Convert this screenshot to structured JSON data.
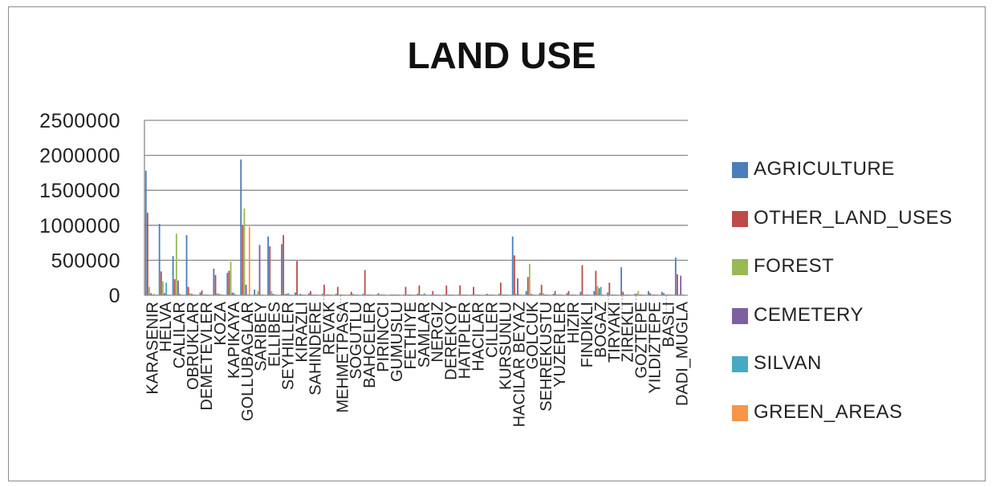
{
  "chart_data": {
    "type": "bar",
    "title": "LAND USE",
    "xlabel": "",
    "ylabel": "",
    "ylim": [
      0,
      2500000
    ],
    "yticks": [
      "2500000",
      "2000000",
      "1500000",
      "1000000",
      "500000",
      "0"
    ],
    "grid": true,
    "legend_position": "right",
    "categories": [
      "KARASENIR",
      "HELVA",
      "CALILAR",
      "OBRUKLAR",
      "DEMETEVLER",
      "KOZA",
      "KAPIKAYA",
      "GOLLUBAGLAR",
      "SARIBEY",
      "ELLIBES",
      "SEYHILLER",
      "KIRAZLI",
      "SAHINDERE",
      "REVAK",
      "MEHMETPASA",
      "SOGUTLU",
      "BAHCELER",
      "PIRINCCI",
      "GUMUSLU",
      "FETHIYE",
      "SAMLAR",
      "NERGIZ",
      "DEREKOY",
      "HATIPLER",
      "HACILAR",
      "CILLER",
      "KURSUNLU",
      "HACILAR BEYAZ",
      "GOLCUK",
      "SEHREKUSTU",
      "YUZERLER",
      "HIZIR",
      "FINDIKLI",
      "BOGAZ",
      "TIRYAKI",
      "ZIREKLI",
      "GOZTEPE",
      "YILDIZTEPE",
      "BASLI",
      "DADI_MUGLA"
    ],
    "category_labels": [
      "KARASENIR",
      "HELVA",
      "CALILAR",
      "OBRUKLAR",
      "DEMETEVLER",
      "KOZA",
      "KAPIKAYA",
      "GOLLUBAGLAR",
      "SARIBEY",
      "ELLIBES",
      "SEYHILLER",
      "KIRAZLI",
      "SAHINDERE",
      "REVAK",
      "MEHMETPASA",
      "SOGUTLU",
      "BAHCELER",
      "PIRINCCI",
      "GUMUSLU",
      "FETHIYE",
      "SAMLAR",
      "NERGIZ",
      "DEREKOY",
      "HATIPLER",
      "HACILAR",
      "CILLER",
      "KURSUNLU",
      "HACILAR BEYAZ",
      "GOLCUK",
      "SEHREKUSTU",
      "YUZERLER",
      "HIZIR",
      "FINDIKLI",
      "BOGAZ",
      "TIRYAKI",
      "ZIREKLI",
      "GOZTEPE",
      "YILDIZTEPE",
      "BASLI",
      "DADI_MUGLA"
    ],
    "series": [
      {
        "name": "AGRICULTURE",
        "color": "#4a7ebb",
        "values": [
          1780000,
          1020000,
          560000,
          860000,
          40000,
          380000,
          320000,
          1940000,
          80000,
          840000,
          730000,
          40000,
          30000,
          20000,
          20000,
          10000,
          20000,
          10000,
          10000,
          10000,
          20000,
          10000,
          10000,
          10000,
          10000,
          10000,
          20000,
          840000,
          60000,
          30000,
          20000,
          30000,
          50000,
          60000,
          40000,
          400000,
          20000,
          60000,
          50000,
          540000
        ]
      },
      {
        "name": "OTHER_LAND_USES",
        "color": "#be4b48",
        "values": [
          1180000,
          340000,
          230000,
          120000,
          70000,
          290000,
          350000,
          1000000,
          10000,
          700000,
          860000,
          490000,
          60000,
          150000,
          120000,
          50000,
          360000,
          30000,
          10000,
          120000,
          140000,
          60000,
          140000,
          140000,
          120000,
          20000,
          180000,
          570000,
          260000,
          150000,
          60000,
          60000,
          430000,
          350000,
          180000,
          50000,
          20000,
          30000,
          30000,
          300000
        ]
      },
      {
        "name": "FOREST",
        "color": "#98b954",
        "values": [
          120000,
          200000,
          880000,
          30000,
          10000,
          30000,
          480000,
          1240000,
          60000,
          60000,
          20000,
          10000,
          10000,
          10000,
          10000,
          20000,
          10000,
          10000,
          10000,
          10000,
          10000,
          10000,
          10000,
          10000,
          10000,
          10000,
          10000,
          20000,
          450000,
          30000,
          10000,
          10000,
          10000,
          130000,
          10000,
          10000,
          60000,
          10000,
          10000,
          10000
        ]
      },
      {
        "name": "CEMETERY",
        "color": "#7d60a0",
        "values": [
          30000,
          30000,
          210000,
          20000,
          10000,
          20000,
          40000,
          150000,
          720000,
          20000,
          20000,
          20000,
          10000,
          10000,
          10000,
          10000,
          10000,
          10000,
          10000,
          10000,
          10000,
          10000,
          10000,
          10000,
          10000,
          10000,
          10000,
          240000,
          20000,
          10000,
          10000,
          10000,
          10000,
          100000,
          10000,
          10000,
          10000,
          10000,
          10000,
          280000
        ]
      },
      {
        "name": "SILVAN",
        "color": "#46aac5",
        "values": [
          10000,
          180000,
          20000,
          10000,
          10000,
          10000,
          30000,
          10000,
          10000,
          10000,
          30000,
          10000,
          10000,
          10000,
          10000,
          10000,
          10000,
          10000,
          10000,
          10000,
          30000,
          10000,
          10000,
          10000,
          10000,
          10000,
          10000,
          10000,
          10000,
          10000,
          10000,
          10000,
          10000,
          120000,
          10000,
          10000,
          10000,
          10000,
          10000,
          10000
        ]
      },
      {
        "name": "GREEN_AREAS",
        "color": "#f79646",
        "values": [
          20000,
          10000,
          10000,
          10000,
          10000,
          10000,
          10000,
          980000,
          10000,
          10000,
          10000,
          10000,
          10000,
          10000,
          10000,
          10000,
          10000,
          10000,
          10000,
          10000,
          10000,
          10000,
          10000,
          10000,
          10000,
          10000,
          10000,
          10000,
          10000,
          10000,
          10000,
          10000,
          10000,
          10000,
          10000,
          10000,
          10000,
          10000,
          10000,
          10000
        ]
      }
    ]
  }
}
